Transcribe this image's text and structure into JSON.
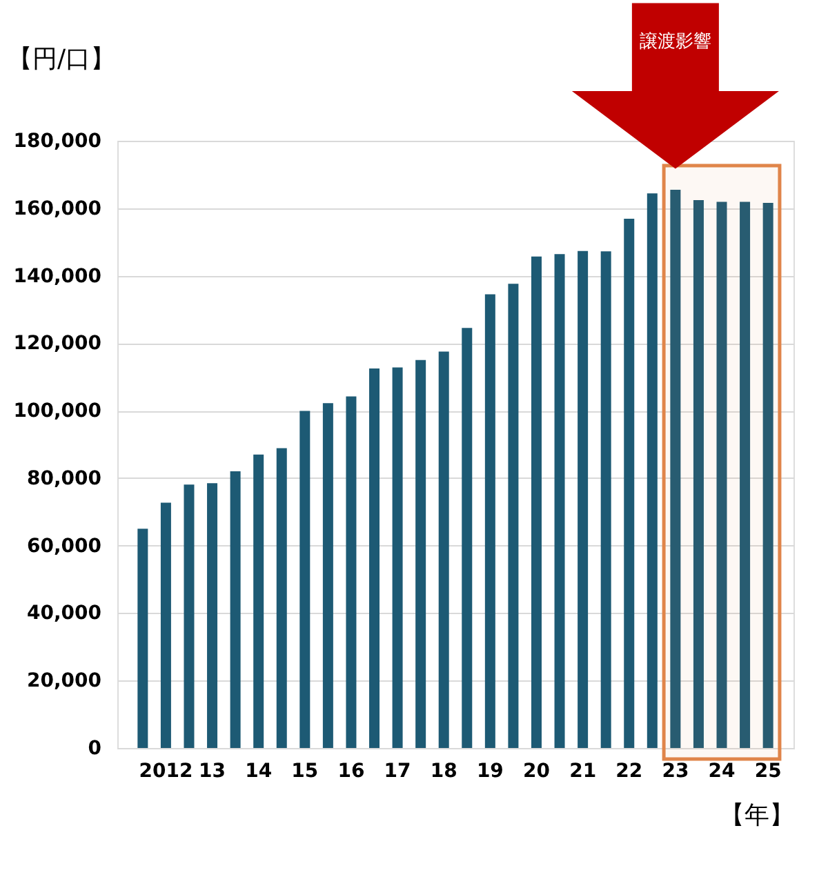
{
  "chart_data": {
    "type": "bar",
    "ylabel": "【円/口】",
    "xlabel": "【年】",
    "categories": [
      null,
      "2012",
      null,
      "13",
      null,
      "14",
      null,
      "15",
      null,
      "16",
      null,
      "17",
      null,
      "18",
      null,
      "19",
      null,
      "20",
      null,
      "21",
      null,
      "22",
      null,
      "23",
      null,
      "24",
      null,
      "25"
    ],
    "values": [
      65000,
      72700,
      78100,
      78500,
      82000,
      87000,
      88900,
      99900,
      102200,
      104200,
      112500,
      112800,
      115000,
      117500,
      124500,
      134500,
      137600,
      145700,
      146400,
      147300,
      147200,
      156900,
      164400,
      165500,
      162400,
      161900,
      161900,
      161600
    ],
    "color": "#1d5a74",
    "ylim": [
      0,
      180000
    ],
    "yticks": [
      0,
      {
        "value": 20000,
        "label": "20,000"
      },
      {
        "value": 40000,
        "label": "40,000"
      },
      {
        "value": 60000,
        "label": "60,000"
      },
      {
        "value": 80000,
        "label": "80,000"
      },
      {
        "value": 100000,
        "label": "100,000"
      },
      {
        "value": 120000,
        "label": "120,000"
      },
      {
        "value": 140000,
        "label": "140,000"
      },
      {
        "value": 160000,
        "label": "160,000"
      },
      {
        "value": 180000,
        "label": "180,000"
      }
    ],
    "grid": "y",
    "bands": [
      {
        "axis": "x",
        "from": "23",
        "to": "25",
        "color": "#e0854a"
      }
    ],
    "annotations": [
      "譲渡影響"
    ]
  }
}
